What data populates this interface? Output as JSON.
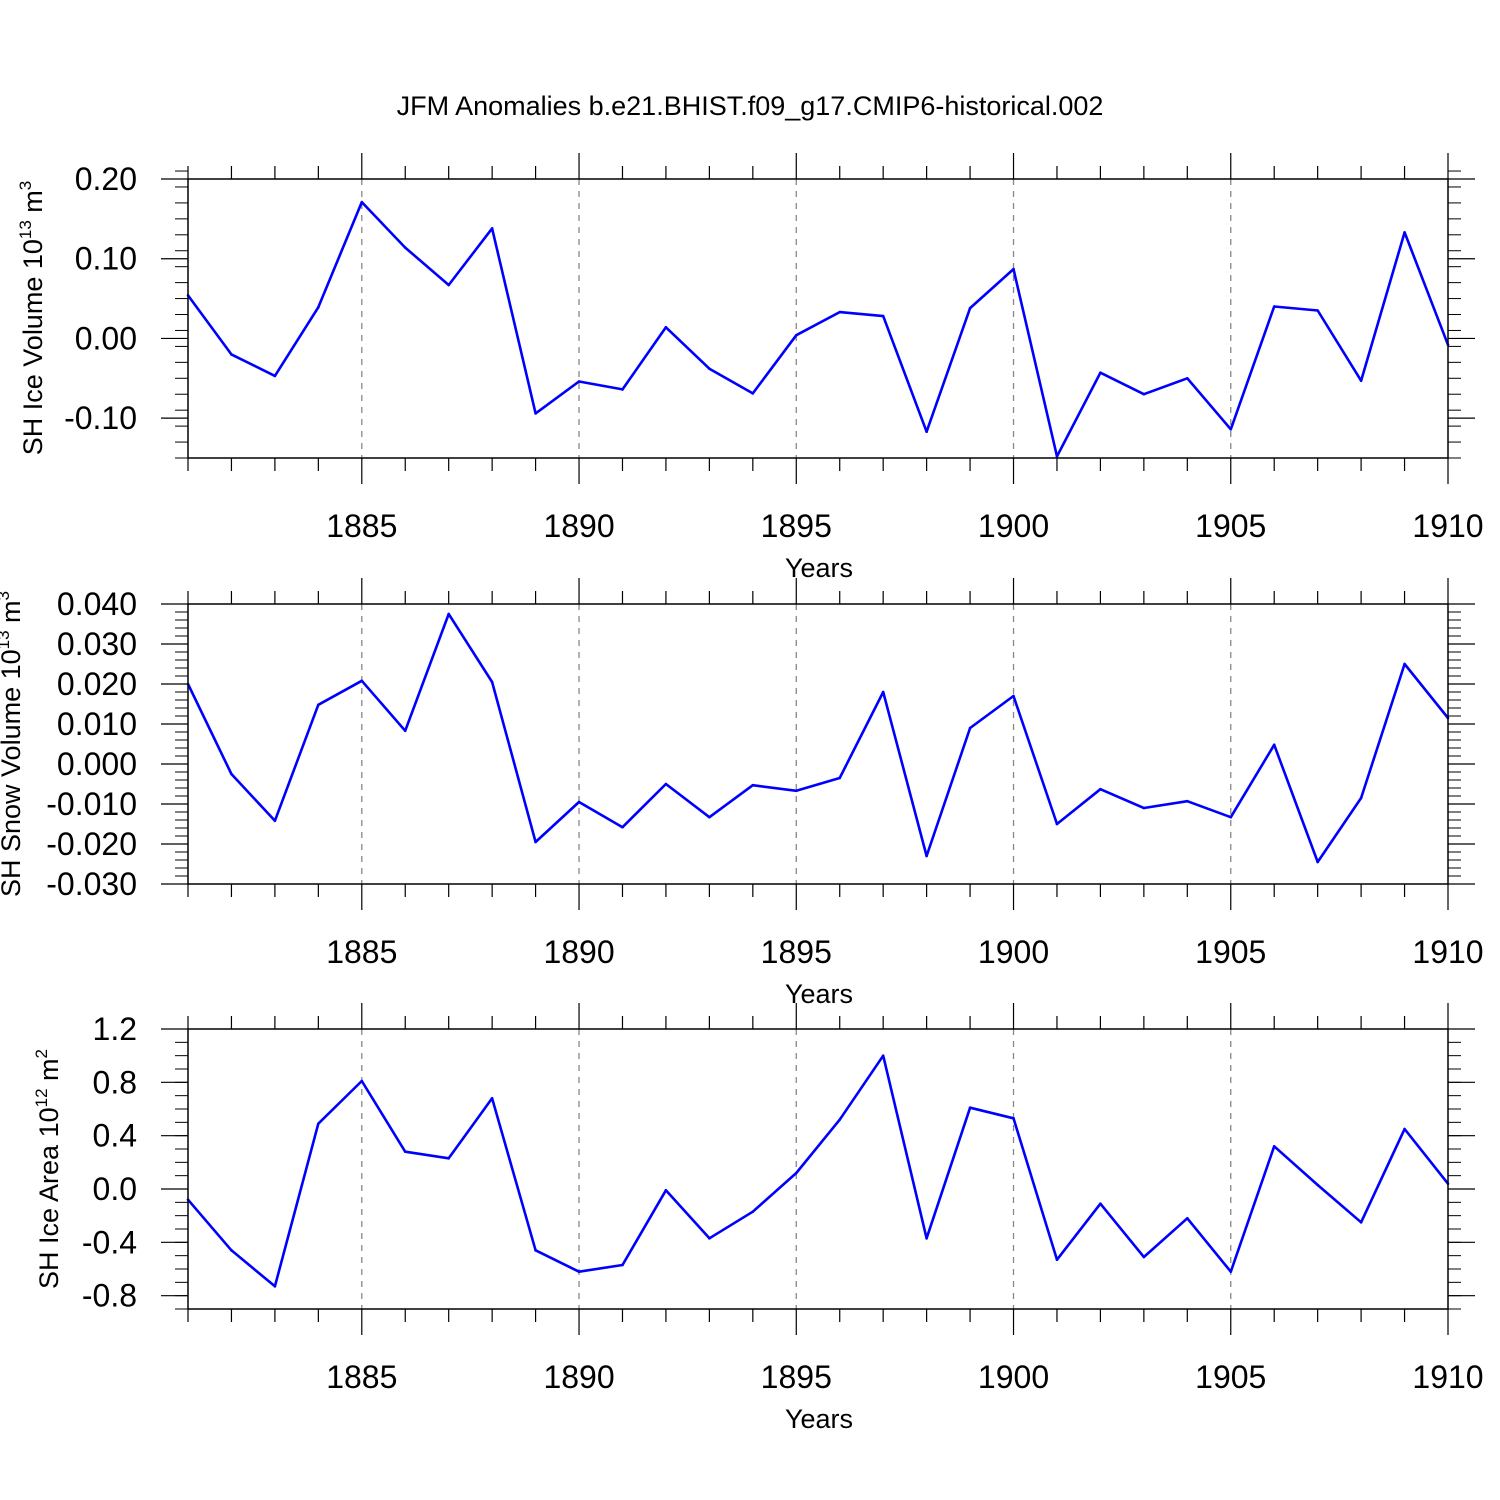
{
  "figure": {
    "title": "JFM Anomalies b.e21.BHIST.f09_g17.CMIP6-historical.002"
  },
  "chart_data": [
    {
      "type": "line",
      "title": "",
      "xlabel": "Years",
      "ylabel": "SH Ice Volume 10",
      "ylabel_sup": "13",
      "ylabel_unit": "m",
      "ylabel_unit_sup": "3",
      "xlim": [
        1881,
        1910
      ],
      "ylim": [
        -0.15,
        0.2
      ],
      "xticks": [
        1885,
        1890,
        1895,
        1900,
        1905,
        1910
      ],
      "xtick_labels": [
        "1885",
        "1890",
        "1895",
        "1900",
        "1905",
        "1910"
      ],
      "yticks": [
        -0.1,
        0.0,
        0.1,
        0.2
      ],
      "ytick_labels": [
        "-0.10",
        "0.00",
        "0.10",
        "0.20"
      ],
      "grid": "vertical dashed at major x ticks",
      "color": "#0000ff",
      "x": [
        1881,
        1882,
        1883,
        1884,
        1885,
        1886,
        1887,
        1888,
        1889,
        1890,
        1891,
        1892,
        1893,
        1894,
        1895,
        1896,
        1897,
        1898,
        1899,
        1900,
        1901,
        1902,
        1903,
        1904,
        1905,
        1906,
        1907,
        1908,
        1909,
        1910
      ],
      "values": [
        0.054,
        -0.02,
        -0.047,
        0.039,
        0.171,
        0.114,
        0.067,
        0.138,
        -0.094,
        -0.054,
        -0.064,
        0.014,
        -0.038,
        -0.069,
        0.004,
        0.033,
        0.028,
        -0.117,
        0.038,
        0.087,
        -0.148,
        -0.043,
        -0.07,
        -0.05,
        -0.114,
        0.04,
        0.035,
        -0.053,
        0.133,
        -0.008
      ]
    },
    {
      "type": "line",
      "title": "",
      "xlabel": "Years",
      "ylabel": "SH Snow Volume 10",
      "ylabel_sup": "13",
      "ylabel_unit": "m",
      "ylabel_unit_sup": "3",
      "xlim": [
        1881,
        1910
      ],
      "ylim": [
        -0.03,
        0.04
      ],
      "xticks": [
        1885,
        1890,
        1895,
        1900,
        1905,
        1910
      ],
      "xtick_labels": [
        "1885",
        "1890",
        "1895",
        "1900",
        "1905",
        "1910"
      ],
      "yticks": [
        -0.03,
        -0.02,
        -0.01,
        0.0,
        0.01,
        0.02,
        0.03,
        0.04
      ],
      "ytick_labels": [
        "-0.030",
        "-0.020",
        "-0.010",
        "0.000",
        "0.010",
        "0.020",
        "0.030",
        "0.040"
      ],
      "grid": "vertical dashed at major x ticks",
      "color": "#0000ff",
      "x": [
        1881,
        1882,
        1883,
        1884,
        1885,
        1886,
        1887,
        1888,
        1889,
        1890,
        1891,
        1892,
        1893,
        1894,
        1895,
        1896,
        1897,
        1898,
        1899,
        1900,
        1901,
        1902,
        1903,
        1904,
        1905,
        1906,
        1907,
        1908,
        1909,
        1910
      ],
      "values": [
        0.02,
        -0.0025,
        -0.0142,
        0.0148,
        0.0208,
        0.0083,
        0.0375,
        0.0205,
        -0.0195,
        -0.0095,
        -0.0158,
        -0.005,
        -0.0133,
        -0.0053,
        -0.0067,
        -0.0035,
        0.018,
        -0.023,
        0.009,
        0.017,
        -0.015,
        -0.0063,
        -0.011,
        -0.0093,
        -0.0133,
        0.0048,
        -0.0245,
        -0.0085,
        0.025,
        0.0115
      ]
    },
    {
      "type": "line",
      "title": "",
      "xlabel": "Years",
      "ylabel": "SH Ice Area 10",
      "ylabel_sup": "12",
      "ylabel_unit": "m",
      "ylabel_unit_sup": "2",
      "xlim": [
        1881,
        1910
      ],
      "ylim": [
        -0.9,
        1.2
      ],
      "xticks": [
        1885,
        1890,
        1895,
        1900,
        1905,
        1910
      ],
      "xtick_labels": [
        "1885",
        "1890",
        "1895",
        "1900",
        "1905",
        "1910"
      ],
      "yticks": [
        -0.8,
        -0.4,
        0.0,
        0.4,
        0.8,
        1.2
      ],
      "ytick_labels": [
        "-0.8",
        "-0.4",
        "0.0",
        "0.4",
        "0.8",
        "1.2"
      ],
      "grid": "vertical dashed at major x ticks",
      "color": "#0000ff",
      "x": [
        1881,
        1882,
        1883,
        1884,
        1885,
        1886,
        1887,
        1888,
        1889,
        1890,
        1891,
        1892,
        1893,
        1894,
        1895,
        1896,
        1897,
        1898,
        1899,
        1900,
        1901,
        1902,
        1903,
        1904,
        1905,
        1906,
        1907,
        1908,
        1909,
        1910
      ],
      "values": [
        -0.08,
        -0.46,
        -0.73,
        0.49,
        0.81,
        0.28,
        0.23,
        0.68,
        -0.46,
        -0.62,
        -0.57,
        -0.01,
        -0.37,
        -0.17,
        0.12,
        0.52,
        1.0,
        -0.37,
        0.61,
        0.53,
        -0.53,
        -0.11,
        -0.51,
        -0.22,
        -0.62,
        0.32,
        0.03,
        -0.25,
        0.45,
        0.04
      ]
    }
  ]
}
